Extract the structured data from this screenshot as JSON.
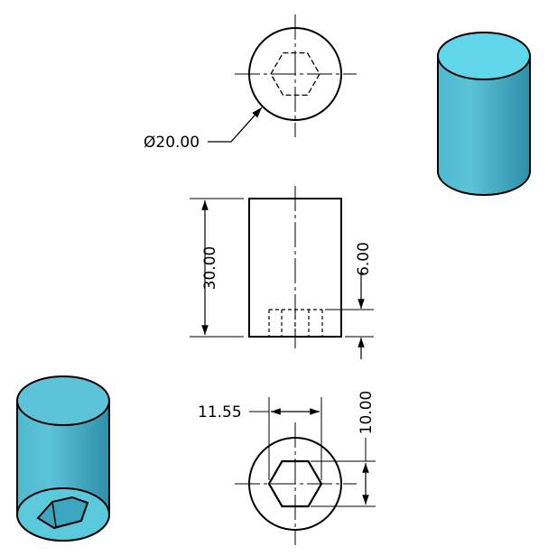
{
  "drawing": {
    "top_view": {
      "diameter_label": "Ø20.00"
    },
    "front_view": {
      "height_label": "30.00",
      "hole_depth_label": "6.00"
    },
    "bottom_view": {
      "hex_across_corners_label": "11.55",
      "hex_across_flats_label": "10.00"
    },
    "colors": {
      "line": "#000000",
      "cylinder_side_light": "#5cc3d8",
      "cylinder_side_dark": "#2f8fa8",
      "cylinder_top": "#60d6ea",
      "cylinder_bottom_face": "#5bc9dc",
      "hex_recess": "#3aa6c0"
    }
  }
}
